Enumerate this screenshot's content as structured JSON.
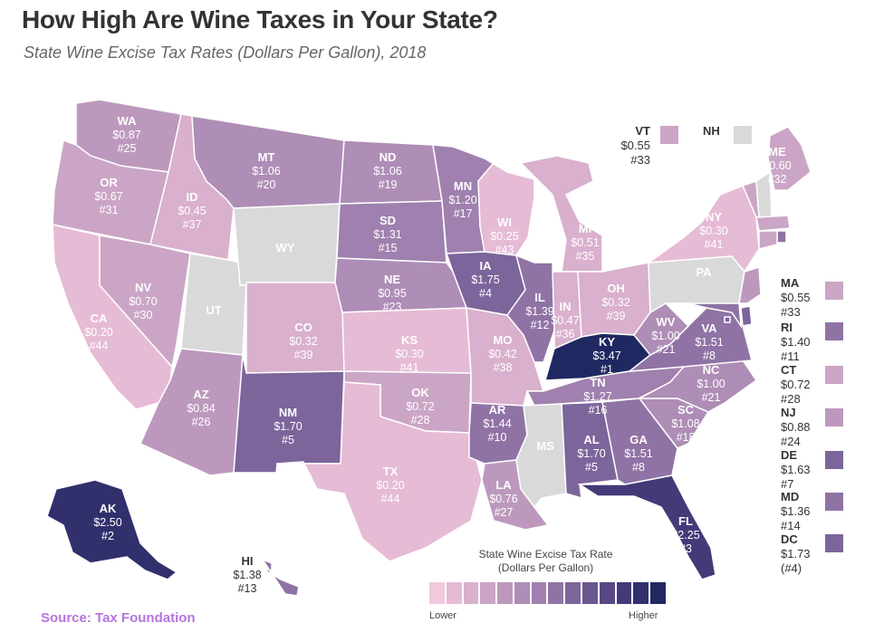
{
  "header": {
    "title": "How High Are Wine Taxes in Your State?",
    "subtitle": "State Wine Excise Tax Rates (Dollars Per Gallon), 2018"
  },
  "source": "Source: Tax Foundation",
  "legend": {
    "title_line1": "State Wine Excise Tax Rate",
    "title_line2": "(Dollars Per Gallon)",
    "low_label": "Lower",
    "high_label": "Higher",
    "colors": [
      "#f2c8dd",
      "#e6bbd5",
      "#d9b0cd",
      "#cba5c5",
      "#bd98bd",
      "#ae8db6",
      "#9f80ae",
      "#8f73a5",
      "#7c659b",
      "#6a5690",
      "#574884",
      "#443a78",
      "#31306d",
      "#1f2861"
    ]
  },
  "colors": {
    "no_tax": "#d9d9d9",
    "highest": "#1f2861",
    "border": "#ffffff"
  },
  "states": {
    "WA": {
      "abbr": "WA",
      "rate": "$0.87",
      "rank": "#25"
    },
    "OR": {
      "abbr": "OR",
      "rate": "$0.67",
      "rank": "#31"
    },
    "CA": {
      "abbr": "CA",
      "rate": "$0.20",
      "rank": "#44"
    },
    "ID": {
      "abbr": "ID",
      "rate": "$0.45",
      "rank": "#37"
    },
    "NV": {
      "abbr": "NV",
      "rate": "$0.70",
      "rank": "#30"
    },
    "UT": {
      "abbr": "UT"
    },
    "AZ": {
      "abbr": "AZ",
      "rate": "$0.84",
      "rank": "#26"
    },
    "MT": {
      "abbr": "MT",
      "rate": "$1.06",
      "rank": "#20"
    },
    "WY": {
      "abbr": "WY"
    },
    "CO": {
      "abbr": "CO",
      "rate": "$0.32",
      "rank": "#39"
    },
    "NM": {
      "abbr": "NM",
      "rate": "$1.70",
      "rank": "#5"
    },
    "ND": {
      "abbr": "ND",
      "rate": "$1.06",
      "rank": "#19"
    },
    "SD": {
      "abbr": "SD",
      "rate": "$1.31",
      "rank": "#15"
    },
    "NE": {
      "abbr": "NE",
      "rate": "$0.95",
      "rank": "#23"
    },
    "KS": {
      "abbr": "KS",
      "rate": "$0.30",
      "rank": "#41"
    },
    "OK": {
      "abbr": "OK",
      "rate": "$0.72",
      "rank": "#28"
    },
    "TX": {
      "abbr": "TX",
      "rate": "$0.20",
      "rank": "#44"
    },
    "MN": {
      "abbr": "MN",
      "rate": "$1.20",
      "rank": "#17"
    },
    "IA": {
      "abbr": "IA",
      "rate": "$1.75",
      "rank": "#4"
    },
    "MO": {
      "abbr": "MO",
      "rate": "$0.42",
      "rank": "#38"
    },
    "AR": {
      "abbr": "AR",
      "rate": "$1.44",
      "rank": "#10"
    },
    "LA": {
      "abbr": "LA",
      "rate": "$0.76",
      "rank": "#27"
    },
    "WI": {
      "abbr": "WI",
      "rate": "$0.25",
      "rank": "#43"
    },
    "IL": {
      "abbr": "IL",
      "rate": "$1.39",
      "rank": "#12"
    },
    "MI": {
      "abbr": "MI",
      "rate": "$0.51",
      "rank": "#35"
    },
    "IN": {
      "abbr": "IN",
      "rate": "$0.47",
      "rank": "#36"
    },
    "OH": {
      "abbr": "OH",
      "rate": "$0.32",
      "rank": "#39"
    },
    "KY": {
      "abbr": "KY",
      "rate": "$3.47",
      "rank": "#1"
    },
    "TN": {
      "abbr": "TN",
      "rate": "$1.27",
      "rank": "#16"
    },
    "MS": {
      "abbr": "MS"
    },
    "AL": {
      "abbr": "AL",
      "rate": "$1.70",
      "rank": "#5"
    },
    "GA": {
      "abbr": "GA",
      "rate": "$1.51",
      "rank": "#8"
    },
    "FL": {
      "abbr": "FL",
      "rate": "$2.25",
      "rank": "#3"
    },
    "SC": {
      "abbr": "SC",
      "rate": "$1.08",
      "rank": "#18"
    },
    "NC": {
      "abbr": "NC",
      "rate": "$1.00",
      "rank": "#21"
    },
    "VA": {
      "abbr": "VA",
      "rate": "$1.51",
      "rank": "#8"
    },
    "WV": {
      "abbr": "WV",
      "rate": "$1.00",
      "rank": "#21"
    },
    "PA": {
      "abbr": "PA"
    },
    "NY": {
      "abbr": "NY",
      "rate": "$0.30",
      "rank": "#41"
    },
    "ME": {
      "abbr": "ME",
      "rate": "$0.60",
      "rank": "#32"
    },
    "AK": {
      "abbr": "AK",
      "rate": "$2.50",
      "rank": "#2"
    },
    "HI": {
      "abbr": "HI",
      "rate": "$1.38",
      "rank": "#13"
    }
  },
  "callouts": {
    "VT": {
      "abbr": "VT",
      "rate": "$0.55",
      "rank": "#33"
    },
    "NH": {
      "abbr": "NH"
    },
    "MA": {
      "abbr": "MA",
      "rate": "$0.55",
      "rank": "#33"
    },
    "RI": {
      "abbr": "RI",
      "rate": "$1.40",
      "rank": "#11"
    },
    "CT": {
      "abbr": "CT",
      "rate": "$0.72",
      "rank": "#28"
    },
    "NJ": {
      "abbr": "NJ",
      "rate": "$0.88",
      "rank": "#24"
    },
    "DE": {
      "abbr": "DE",
      "rate": "$1.63",
      "rank": "#7"
    },
    "MD": {
      "abbr": "MD",
      "rate": "$1.36",
      "rank": "#14"
    },
    "DC": {
      "abbr": "DC",
      "rate": "$1.73",
      "rank": "(#4)"
    }
  }
}
